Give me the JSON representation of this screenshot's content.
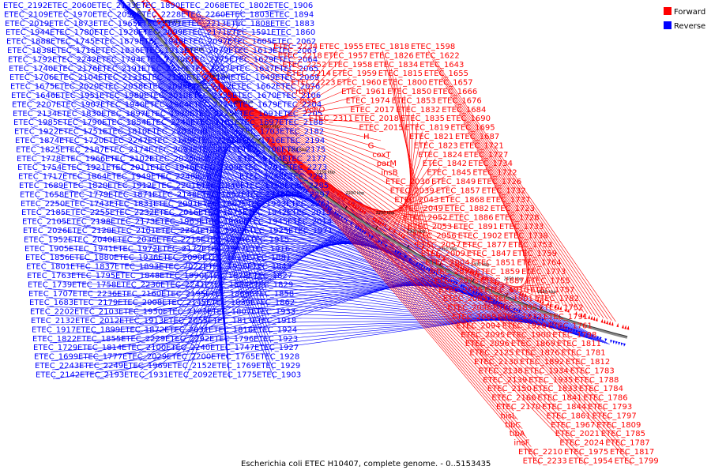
{
  "legend": {
    "forward_label": "Forward",
    "reverse_label": "Reverse",
    "forward_color": "#ff0000",
    "reverse_color": "#0000ff"
  },
  "caption": "Escherichia coli ETEC H10407, complete genome. - 0..5153435",
  "tick_labels": [
    "2500 kbp",
    "2450 kbp",
    "2400 kbp",
    "2350 kbp",
    "2300 kbp",
    "2250 kbp",
    "2200 kbp",
    "2150 kbp",
    "2100 kbp",
    "2050 kbp",
    "2000 kbp",
    "1950 kbp",
    "1900 kbp",
    "1850 kbp",
    "1800 kbp"
  ],
  "reverse_labels": [
    "ETEC_2192",
    "ETEC_2109",
    "ETEC_2019",
    "ETEC_1944",
    "ETEC_1888",
    "ETEC_1838",
    "ETEC_1792",
    "ETEC_1740",
    "ETEC_1706",
    "ETEC_1675",
    "ETEC_1646",
    "ETEC_2207",
    "ETEC_2134",
    "ETEC_1985",
    "ETEC_1922",
    "ETEC_1874",
    "ETEC_1825",
    "ETEC_1778",
    "ETEC_1754",
    "ETEC_1717",
    "ETEC_1689",
    "ETEC_1658",
    "ETEC_2250",
    "ETEC_2185",
    "ETEC_2105",
    "ETEC_2026",
    "ETEC_1952",
    "ETEC_1905",
    "ETEC_1856",
    "ETEC_1801",
    "ETEC_1763",
    "ETEC_1739",
    "ETEC_1707",
    "ETEC_1683",
    "ETEC_2202",
    "ETEC_2132",
    "ETEC_1917",
    "ETEC_1822",
    "ETEC_1729",
    "ETEC_1699",
    "ETEC_2243",
    "ETEC_2142",
    "ETEC_2060",
    "ETEC_1970",
    "ETEC_1873",
    "ETEC_1780",
    "ETEC_1745",
    "ETEC_1715",
    "ETEC_2242",
    "ETEC_2176",
    "ETEC_2104",
    "ETEC_2020",
    "ETEC_1951",
    "ETEC_1907",
    "ETEC_1830",
    "ETEC_1790",
    "ETEC_1751",
    "ETEC_1720",
    "ETEC_2187",
    "ETEC_1966",
    "ETEC_1921",
    "ETEC_1864",
    "ETEC_1820",
    "ETEC_1779",
    "ETEC_1743",
    "ETEC_2255",
    "ETEC_2198",
    "ETEC_2128",
    "ETEC_2040",
    "ETEC_1941",
    "ETEC_1880",
    "ETEC_1837",
    "ETEC_1795",
    "ETEC_1758",
    "ETEC_2236",
    "ETEC_2179",
    "ETEC_2103",
    "ETEC_2012",
    "ETEC_1899",
    "ETEC_1855",
    "ETEC_1814",
    "ETEC_1777",
    "ETEC_2249",
    "ETEC_2193",
    "ETEC_2133",
    "ETEC_2059",
    "ETEC_1965",
    "ETEC_1920",
    "ETEC_1879",
    "ETEC_1836",
    "ETEC_1794",
    "ETEC_2191",
    "ETEC_2131",
    "ETEC_2058",
    "ETEC_1989",
    "ETEC_1940",
    "ETEC_1897",
    "ETEC_1854",
    "ETEC_1810",
    "ETEC_2247",
    "ETEC_2174",
    "ETEC_2102",
    "ETEC_2011",
    "ETEC_1949",
    "ETEC_1912",
    "ETEC_1871",
    "ETEC_1831",
    "ETEC_2232",
    "ETEC_2173",
    "ETEC_2101",
    "ETEC_2036",
    "ETEC_1972",
    "ETEC_1936",
    "ETEC_1893",
    "ETEC_1848",
    "ETEC_2230",
    "ETEC_2160",
    "ETEC_2008",
    "ETEC_1950",
    "ETEC_1913",
    "ETEC_1872",
    "ETEC_2229",
    "ETEC_2100",
    "ETEC_2029",
    "ETEC_1969",
    "ETEC_1931",
    "ETEC_1890",
    "ETEC_2228",
    "ETEC_2161",
    "ETEC_2099",
    "ETEC_1948",
    "ETEC_1911",
    "ETEC_2270",
    "ETEC_2216",
    "ETEC_2158",
    "ETEC_2098",
    "ETEC_2010",
    "ETEC_1964",
    "ETEC_1930",
    "ETEC_2248",
    "ETEC_2203",
    "ETEC_2149",
    "ETEC_2093",
    "ETEC_2025",
    "ETEC_1946",
    "ETEC_2246",
    "ETEC_2201",
    "ETEC_2148",
    "ETEC_2091",
    "ETEC_2016",
    "ETEC_1963",
    "ETEC_2264",
    "ETEC_2215",
    "ETEC_2172",
    "ETEC_2090",
    "ETEC_2022",
    "ETEC_1990",
    "ETEC_2241",
    "ETEC_2195",
    "ETEC_2145",
    "ETEC_2107",
    "ETEC_2055",
    "ETEC_2031",
    "ETEC_2292",
    "ETEC_2240",
    "ETEC_2200",
    "ETEC_2152",
    "ETEC_2092",
    "ETEC_2068",
    "ETEC_2260",
    "ETEC_2213",
    "ETEC_2171",
    "ETEC_2097",
    "ETEC_2079",
    "ETEC_2275",
    "ETEC_2227",
    "ETEC_2184",
    "ETEC_2112",
    "ETEC_2135",
    "ETEC_2274",
    "ETEC_2225",
    "ETEC_2181",
    "fruB",
    "ETEC_2266",
    "ETEC_2211",
    "insB",
    "ETEC_2290",
    "insB",
    "ETEC_1846",
    "ETEC_1852",
    "ETEC_1867",
    "ETEC_1875",
    "ETEC_1908",
    "ETEC_1909",
    "ETEC_1914",
    "ETEC_1947",
    "ETEC_1919",
    "ETEC_1956",
    "ETEC_1878",
    "ETEC_1884",
    "ETEC_1889",
    "ETEC_1839",
    "ETEC_1807",
    "ETEC_1813",
    "ETEC_1816",
    "ETEC_1796",
    "ETEC_1747",
    "ETEC_1765",
    "ETEC_1769",
    "ETEC_1775",
    "ETEC_1802",
    "ETEC_1803",
    "ETEC_1808",
    "ETEC_1591",
    "ETEC_1605",
    "ETEC_1613",
    "ETEC_1629",
    "ETEC_1637",
    "ETEC_1649",
    "ETEC_1662",
    "ETEC_1670",
    "ETEC_1679",
    "ETEC_1691",
    "ETEC_1697",
    "ETEC_1703",
    "ETEC_1716",
    "ETEC_1708",
    "ETEC_1714",
    "ETEC_1741",
    "ETEC_1748",
    "ETEC_1768",
    "ETEC_1746",
    "ETEC_1953",
    "ETEC_1942",
    "ETEC_1945",
    "ETEC_1925",
    "ETEC_1915",
    "ETEC_1916",
    "ETEC_1881",
    "ETEC_1843",
    "ETEC_1827",
    "ETEC_1829",
    "ETEC_1858",
    "ETEC_1862",
    "ETEC_1933",
    "ETEC_1918",
    "ETEC_1924",
    "ETEC_1923",
    "ETEC_1927",
    "ETEC_1928",
    "ETEC_1929",
    "ETEC_1903",
    "ETEC_1906",
    "ETEC_1894",
    "ETEC_1883",
    "ETEC_1860",
    "ETEC_2062",
    "ETEC_2063",
    "ETEC_2064",
    "ETEC_2065",
    "ETEC_2069",
    "ETEC_2076",
    "ETEC_2106",
    "ETEC_2204",
    "ETEC_2205",
    "ETEC_2188",
    "ETEC_2182",
    "ETEC_2194",
    "ETEC_2175",
    "ETEC_2177",
    "ETEC_2273",
    "ETEC_2291",
    "ETEC_2285",
    "ETEC_2297",
    "ETEC_2261",
    "ETEC_2013",
    "ETEC_2014",
    "ETEC_1971"
  ],
  "forward_labels": [
    "ETEC_1598",
    "ETEC_1622",
    "ETEC_1643",
    "ETEC_1655",
    "ETEC_1657",
    "ETEC_1666",
    "ETEC_1676",
    "ETEC_1684",
    "ETEC_1690",
    "ETEC_1695",
    "ETEC_1687",
    "ETEC_1721",
    "ETEC_1727",
    "ETEC_1734",
    "ETEC_1722",
    "ETEC_1726",
    "ETEC_1732",
    "ETEC_1737",
    "ETEC_1723",
    "ETEC_1728",
    "ETEC_1733",
    "ETEC_1738",
    "ETEC_1753",
    "ETEC_1759",
    "ETEC_1764",
    "ETEC_1773",
    "ETEC_1755",
    "ETEC_1757",
    "ETEC_1782",
    "ETEC_1752",
    "ETEC_1791",
    "ETEC_1761",
    "ETEC_1798",
    "ETEC_1811",
    "ETEC_1781",
    "ETEC_1812",
    "ETEC_1783",
    "ETEC_1788",
    "ETEC_1784",
    "ETEC_1786",
    "ETEC_1793",
    "ETEC_1797",
    "ETEC_1809",
    "ETEC_1785",
    "ETEC_1787",
    "ETEC_1817",
    "ETEC_1799",
    "ETEC_1818",
    "ETEC_1826",
    "ETEC_1834",
    "ETEC_1815",
    "ETEC_1800",
    "ETEC_1850",
    "ETEC_1853",
    "ETEC_1832",
    "ETEC_1835",
    "ETEC_1819",
    "ETEC_1821",
    "ETEC_1823",
    "ETEC_1824",
    "ETEC_1842",
    "ETEC_1845",
    "ETEC_1849",
    "ETEC_1857",
    "ETEC_1868",
    "ETEC_1882",
    "ETEC_1886",
    "ETEC_1891",
    "ETEC_1902",
    "ETEC_1877",
    "ETEC_1847",
    "ETEC_1851",
    "ETEC_1859",
    "ETEC_1887",
    "ETEC_1910",
    "ETEC_1901",
    "ETEC_1895",
    "ETEC_1932",
    "ETEC_1926",
    "ETEC_1900",
    "ETEC_1869",
    "ETEC_1876",
    "ETEC_1892",
    "ETEC_1934",
    "ETEC_1935",
    "ETEC_1833",
    "ETEC_1841",
    "ETEC_1844",
    "ETEC_1861",
    "ETEC_1967",
    "ETEC_2021",
    "ETEC_2024",
    "ETEC_1975",
    "ETEC_1954",
    "ETEC_1955",
    "ETEC_1957",
    "ETEC_1958",
    "ETEC_1959",
    "ETEC_1960",
    "ETEC_1961",
    "ETEC_1974",
    "ETEC_2017",
    "ETEC_2018",
    "ETEC_2015",
    "H",
    "G",
    "coxT",
    "parM",
    "insB",
    "ETEC_2030",
    "ETEC_2039",
    "ETEC_2043",
    "ETEC_2049",
    "ETEC_2052",
    "ETEC_2053",
    "ETEC_2056",
    "ETEC_2057",
    "ETEC_2009",
    "ETEC_2004",
    "ETEC_2074",
    "ETEC_2073",
    "ETEC_2075",
    "ETEC_2085",
    "ETEC_2086",
    "ETEC_2088",
    "ETEC_2094",
    "ETEC_2095",
    "ETEC_2096",
    "ETEC_2125",
    "ETEC_2130",
    "ETEC_2138",
    "ETEC_2139",
    "ETEC_2150",
    "ETEC_2166",
    "ETEC_2170",
    "hisL",
    "tibC",
    "tibA",
    "insF",
    "ETEC_2210",
    "ETEC_2233",
    "ETEC_2234",
    "ETEC_2218",
    "ETEC_2252",
    "ETEC_2214",
    "ETEC_2223",
    "rbtT",
    "insA",
    "yohO",
    "ETEC_2311"
  ]
}
